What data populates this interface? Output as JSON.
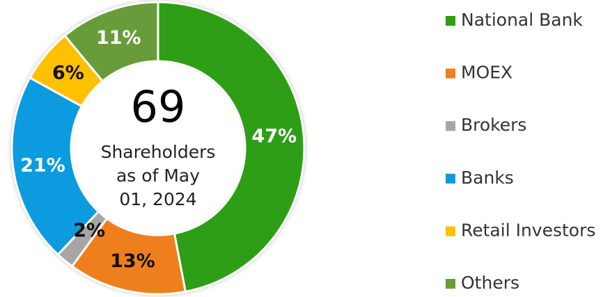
{
  "chart_data": {
    "type": "donut",
    "center_value": 69,
    "center_label": [
      "Shareholders",
      "as of May",
      "01, 2024"
    ],
    "categories": [
      "National Bank",
      "MOEX",
      "Brokers",
      "Banks",
      "Retail Investors",
      "Others"
    ],
    "values": [
      47,
      13,
      2,
      21,
      6,
      11
    ],
    "value_labels": [
      "47%",
      "13%",
      "2%",
      "21%",
      "6%",
      "11%"
    ],
    "colors": [
      "#2f9e12",
      "#ef7f1f",
      "#a6a6a6",
      "#0a9be0",
      "#ffc000",
      "#679c3a"
    ],
    "legend": "right"
  }
}
